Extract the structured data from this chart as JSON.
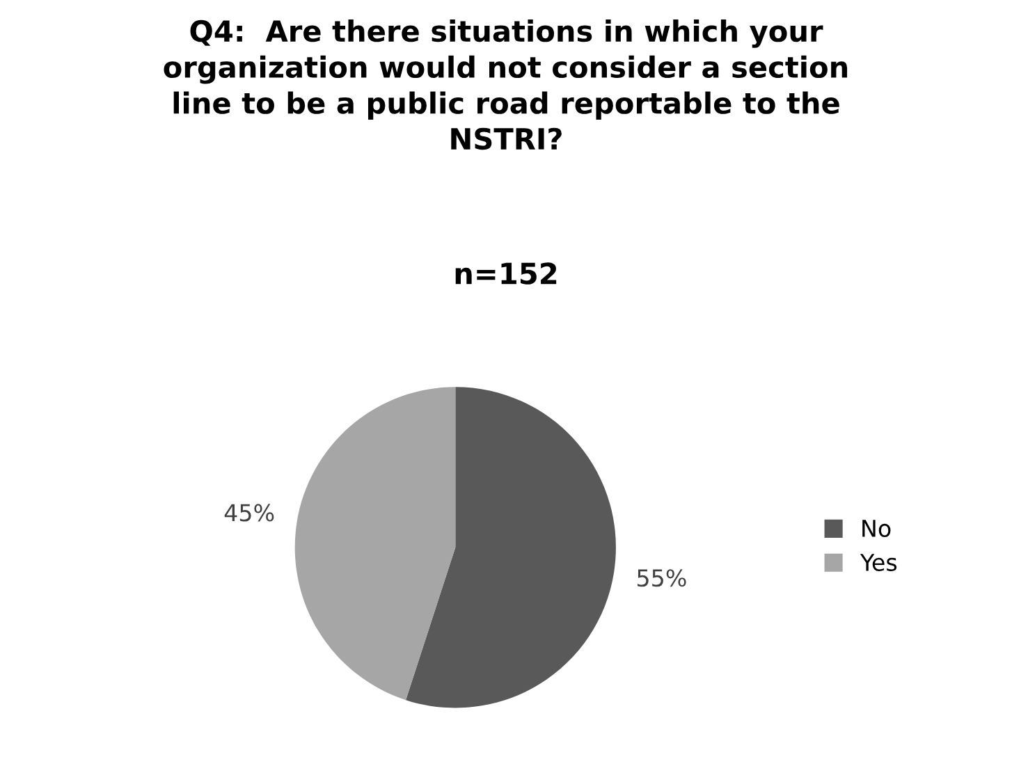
{
  "chart_data": {
    "type": "pie",
    "title": "Q4:  Are there situations in which your\norganization would not consider a section\nline to be a public road reportable to the\nNSTRI?",
    "subtitle": "n=152",
    "categories": [
      "No",
      "Yes"
    ],
    "values": [
      55,
      45
    ],
    "colors": [
      "#595959",
      "#a6a6a6"
    ],
    "value_labels": [
      "55%",
      "45%"
    ],
    "legend": "right"
  }
}
